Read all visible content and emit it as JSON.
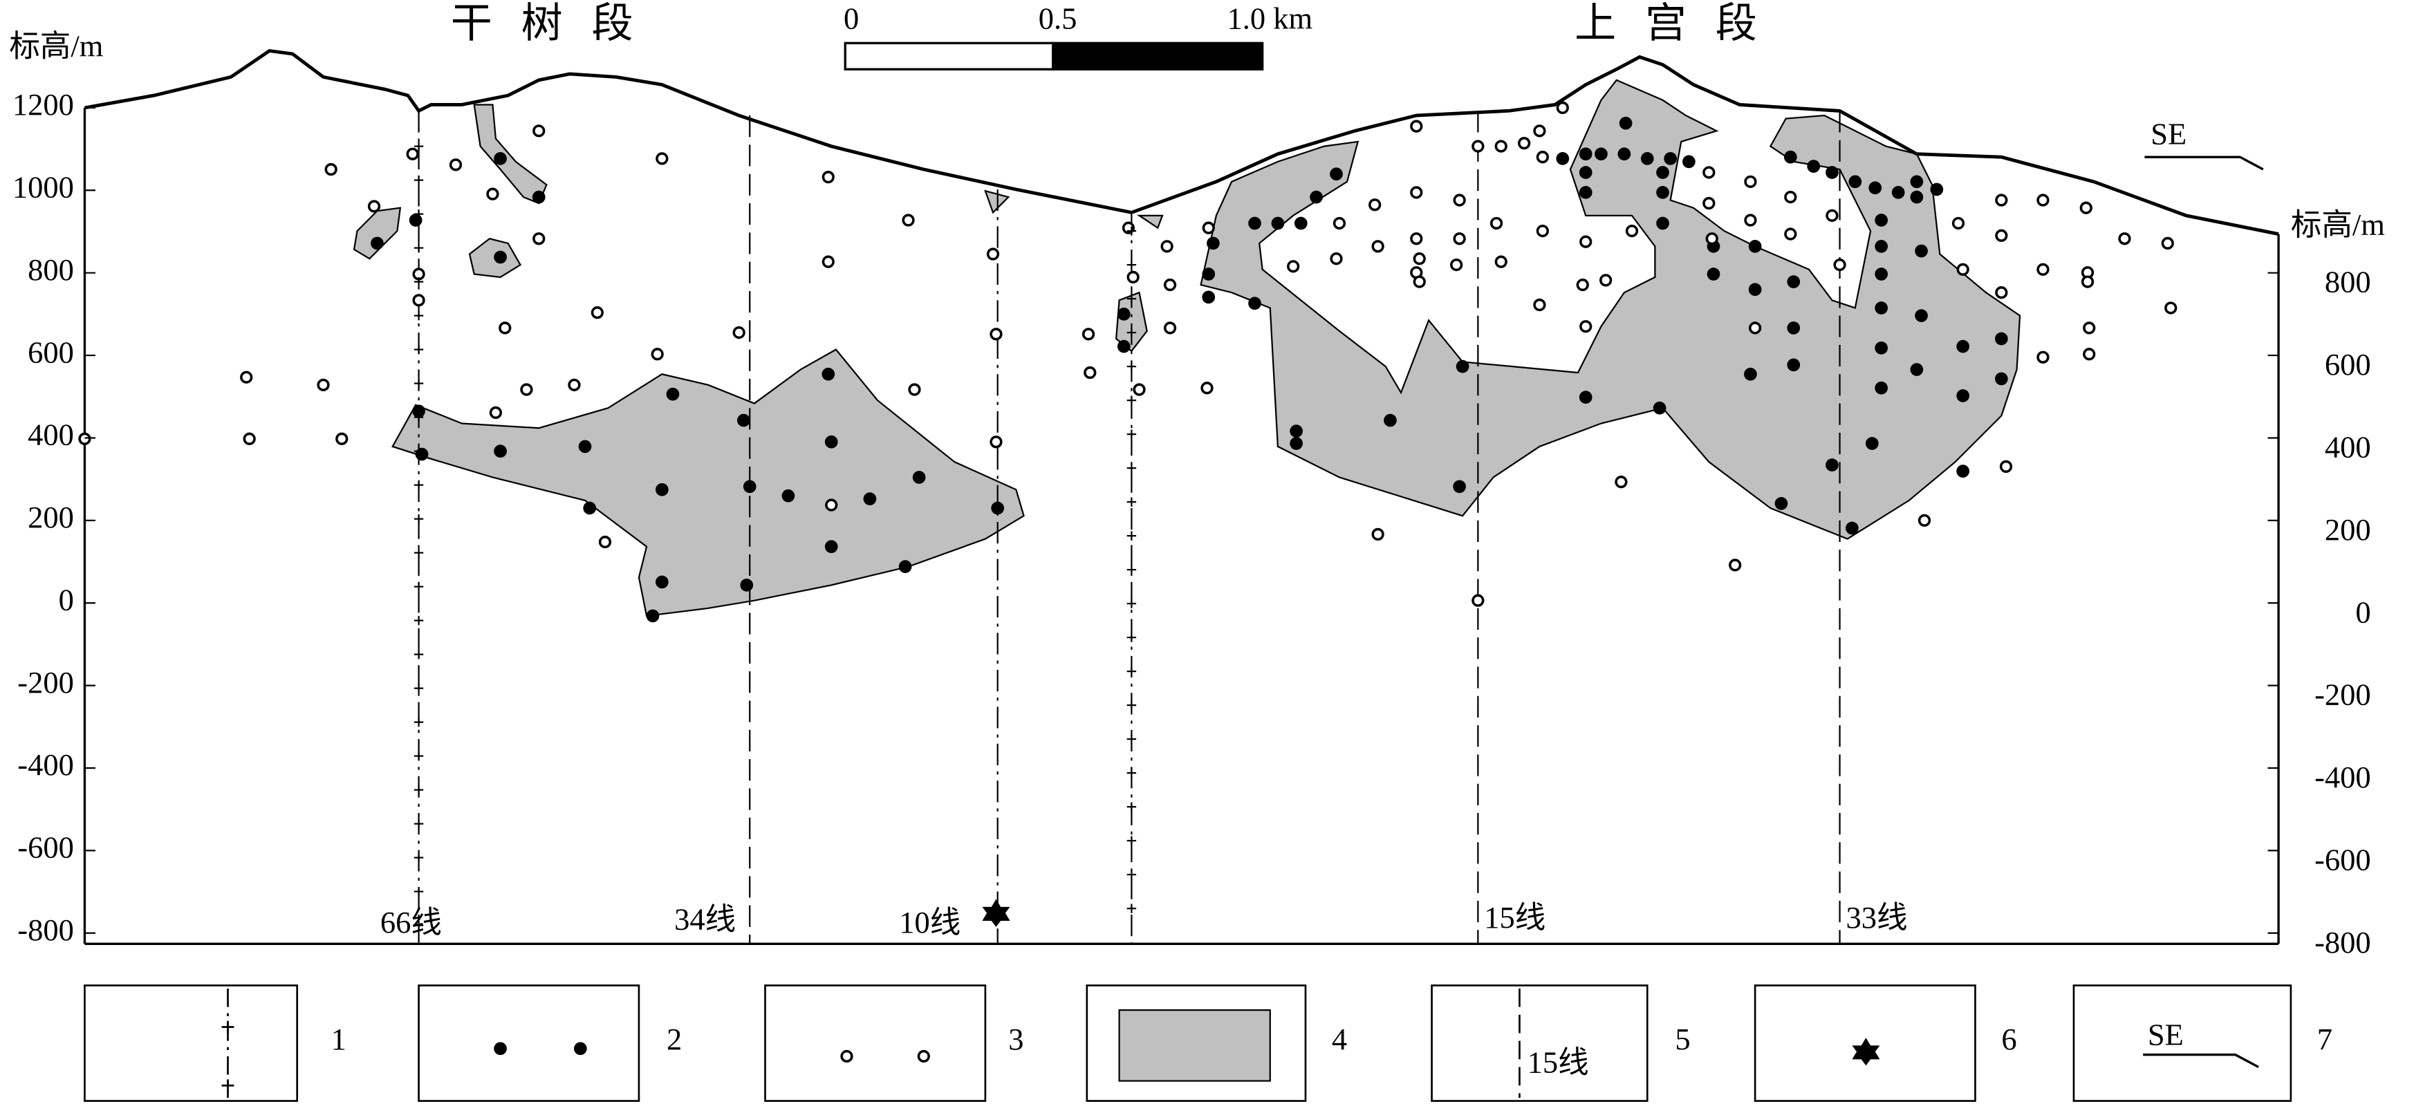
{
  "header": {
    "sections": [
      "干 树 段",
      "上 宫 段"
    ],
    "scale": [
      "0",
      "0.5",
      "1.0 km"
    ]
  },
  "axes": {
    "left": {
      "title": "标高/m",
      "ticks": [
        "1200",
        "1000",
        "800",
        "600",
        "400",
        "200",
        "0",
        "-200",
        "-400",
        "-600",
        "-800"
      ]
    },
    "right": {
      "title": "标高/m",
      "ticks": [
        "800",
        "600",
        "400",
        "200",
        "0",
        "-200",
        "-400",
        "-600",
        "-800"
      ]
    }
  },
  "lines": [
    "66线",
    "34线",
    "10线",
    "15线",
    "33线"
  ],
  "direction": "SE",
  "legend": [
    {
      "number": "1"
    },
    {
      "number": "2"
    },
    {
      "number": "3"
    },
    {
      "number": "4"
    },
    {
      "number": "5",
      "label": "15线"
    },
    {
      "number": "6"
    },
    {
      "number": "7",
      "label": "SE"
    }
  ]
}
